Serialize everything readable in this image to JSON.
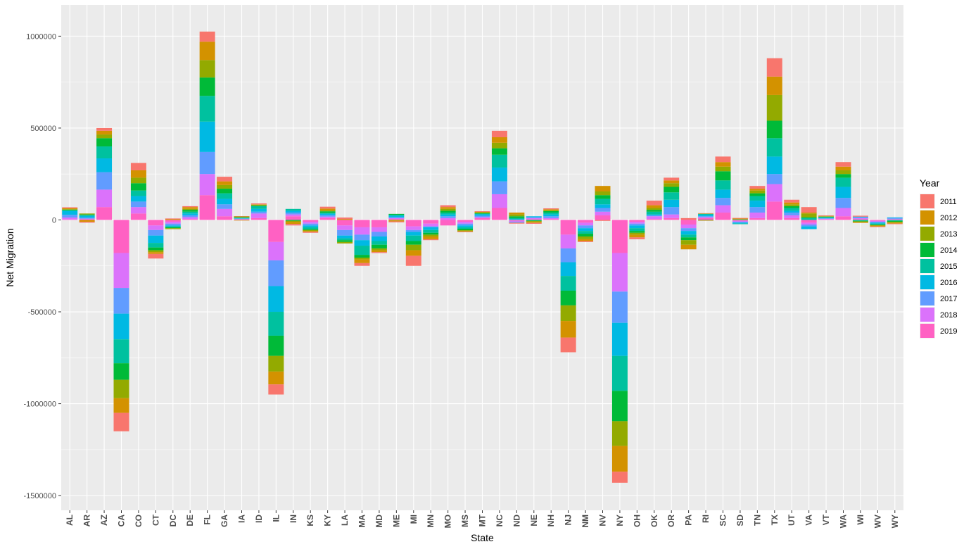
{
  "chart_data": {
    "type": "bar",
    "stacked": true,
    "xlabel": "State",
    "ylabel": "Net Migration",
    "ylim": [
      -1580000,
      1170000
    ],
    "yticks": [
      1000000,
      500000,
      0,
      -500000,
      -1000000,
      -1500000
    ],
    "ytick_labels": [
      "1000000",
      "500000",
      "0",
      "-500000",
      "-1000000",
      "-1500000"
    ],
    "grid": true,
    "legend": {
      "title": "Year",
      "placement": "right"
    },
    "categories": [
      "AL",
      "AR",
      "AZ",
      "CA",
      "CO",
      "CT",
      "DC",
      "DE",
      "FL",
      "GA",
      "IA",
      "ID",
      "IL",
      "IN",
      "KS",
      "KY",
      "LA",
      "MA",
      "MD",
      "ME",
      "MI",
      "MN",
      "MO",
      "MS",
      "MT",
      "NC",
      "ND",
      "NE",
      "NH",
      "NJ",
      "NM",
      "NV",
      "NY",
      "OH",
      "OK",
      "OR",
      "PA",
      "RI",
      "SC",
      "SD",
      "TN",
      "TX",
      "UT",
      "VA",
      "VT",
      "WA",
      "WI",
      "WV",
      "WY"
    ],
    "series": [
      {
        "name": "2011",
        "color": "#F8766D",
        "values": [
          5000,
          -5000,
          15000,
          -100000,
          40000,
          -25000,
          3000,
          5000,
          55000,
          25000,
          2000,
          5000,
          -55000,
          -8000,
          -5000,
          10000,
          8000,
          -15000,
          -5000,
          -5000,
          -55000,
          -5000,
          10000,
          -3000,
          3000,
          35000,
          -5000,
          -5000,
          5000,
          -80000,
          -5000,
          -5000,
          -60000,
          -10000,
          25000,
          15000,
          10000,
          2000,
          30000,
          3000,
          15000,
          100000,
          15000,
          30000,
          3000,
          25000,
          5000,
          -3000,
          -3000
        ]
      },
      {
        "name": "2012",
        "color": "#D39200",
        "values": [
          5000,
          -10000,
          20000,
          -80000,
          40000,
          -10000,
          5000,
          10000,
          100000,
          20000,
          -3000,
          2000,
          -70000,
          -12000,
          -5000,
          10000,
          5000,
          -20000,
          -10000,
          -5000,
          -30000,
          -15000,
          10000,
          -3000,
          3000,
          30000,
          10000,
          -5000,
          5000,
          -90000,
          -10000,
          30000,
          -140000,
          -15000,
          15000,
          15000,
          -25000,
          -2000,
          25000,
          3000,
          10000,
          100000,
          10000,
          5000,
          2000,
          20000,
          -5000,
          -5000,
          -5000
        ]
      },
      {
        "name": "2013",
        "color": "#93AA00",
        "values": [
          3000,
          5000,
          20000,
          -100000,
          30000,
          -10000,
          -5000,
          5000,
          95000,
          20000,
          5000,
          5000,
          -85000,
          -5000,
          -5000,
          5000,
          -8000,
          -10000,
          -10000,
          -3000,
          -30000,
          -10000,
          10000,
          -5000,
          5000,
          30000,
          10000,
          -5000,
          5000,
          -85000,
          -15000,
          20000,
          -135000,
          -10000,
          10000,
          20000,
          -25000,
          2000,
          25000,
          2000,
          15000,
          140000,
          10000,
          20000,
          2000,
          20000,
          -3000,
          -3000,
          -5000
        ]
      },
      {
        "name": "2014",
        "color": "#00BA38",
        "values": [
          3000,
          3000,
          45000,
          -90000,
          40000,
          -15000,
          -5000,
          10000,
          100000,
          25000,
          2000,
          3000,
          -110000,
          -5000,
          -5000,
          8000,
          -10000,
          -15000,
          -20000,
          5000,
          -20000,
          -10000,
          10000,
          -8000,
          3000,
          35000,
          10000,
          -3000,
          8000,
          -80000,
          -15000,
          20000,
          -165000,
          -10000,
          10000,
          30000,
          -15000,
          -2000,
          50000,
          3000,
          15000,
          95000,
          10000,
          5000,
          3000,
          20000,
          -3000,
          -3000,
          -5000
        ]
      },
      {
        "name": "2015",
        "color": "#00C19F",
        "values": [
          5000,
          5000,
          65000,
          -130000,
          30000,
          -25000,
          -5000,
          10000,
          140000,
          30000,
          3000,
          15000,
          -130000,
          10000,
          -10000,
          5000,
          -10000,
          -50000,
          -20000,
          5000,
          -30000,
          -15000,
          10000,
          -8000,
          3000,
          70000,
          5000,
          -3000,
          10000,
          -80000,
          -15000,
          30000,
          -190000,
          -15000,
          15000,
          40000,
          -15000,
          5000,
          50000,
          -3000,
          25000,
          100000,
          15000,
          10000,
          3000,
          50000,
          -5000,
          -5000,
          -5000
        ]
      },
      {
        "name": "2016",
        "color": "#00B9E3",
        "values": [
          20000,
          10000,
          75000,
          -140000,
          30000,
          -40000,
          -5000,
          10000,
          165000,
          30000,
          2000,
          15000,
          -140000,
          10000,
          -10000,
          8000,
          -15000,
          -30000,
          -25000,
          8000,
          -20000,
          -15000,
          10000,
          -10000,
          8000,
          75000,
          5000,
          5000,
          10000,
          -75000,
          -15000,
          20000,
          -180000,
          -15000,
          5000,
          40000,
          -20000,
          8000,
          45000,
          -5000,
          35000,
          95000,
          10000,
          -15000,
          3000,
          60000,
          3000,
          -5000,
          3000
        ]
      },
      {
        "name": "2017",
        "color": "#619CFF",
        "values": [
          15000,
          5000,
          95000,
          -140000,
          30000,
          -30000,
          -10000,
          10000,
          120000,
          25000,
          2000,
          10000,
          -140000,
          10000,
          -10000,
          8000,
          -30000,
          -30000,
          -25000,
          5000,
          -10000,
          -5000,
          10000,
          -10000,
          8000,
          70000,
          -5000,
          5000,
          10000,
          -75000,
          -15000,
          20000,
          -170000,
          -10000,
          5000,
          40000,
          -15000,
          5000,
          40000,
          -5000,
          30000,
          55000,
          15000,
          -10000,
          3000,
          55000,
          5000,
          -5000,
          5000
        ]
      },
      {
        "name": "2018",
        "color": "#DB72FB",
        "values": [
          10000,
          5000,
          95000,
          -190000,
          35000,
          -25000,
          -10000,
          10000,
          115000,
          40000,
          3000,
          25000,
          -100000,
          10000,
          -10000,
          8000,
          -25000,
          -40000,
          -25000,
          5000,
          -20000,
          -15000,
          10000,
          -10000,
          5000,
          75000,
          -5000,
          5000,
          5000,
          -75000,
          -15000,
          20000,
          -210000,
          -10000,
          15000,
          20000,
          -20000,
          5000,
          40000,
          -5000,
          30000,
          95000,
          15000,
          -10000,
          3000,
          45000,
          5000,
          -5000,
          3000
        ]
      },
      {
        "name": "2019",
        "color": "#FF61C3",
        "values": [
          3000,
          2000,
          70000,
          -180000,
          35000,
          -30000,
          -10000,
          5000,
          135000,
          20000,
          2000,
          10000,
          -120000,
          20000,
          -10000,
          10000,
          -30000,
          -40000,
          -40000,
          5000,
          -35000,
          -20000,
          -30000,
          -10000,
          10000,
          65000,
          -5000,
          5000,
          5000,
          -80000,
          -15000,
          25000,
          -180000,
          -10000,
          5000,
          10000,
          -25000,
          10000,
          40000,
          -5000,
          10000,
          100000,
          10000,
          -15000,
          3000,
          20000,
          5000,
          -5000,
          3000
        ]
      }
    ]
  }
}
